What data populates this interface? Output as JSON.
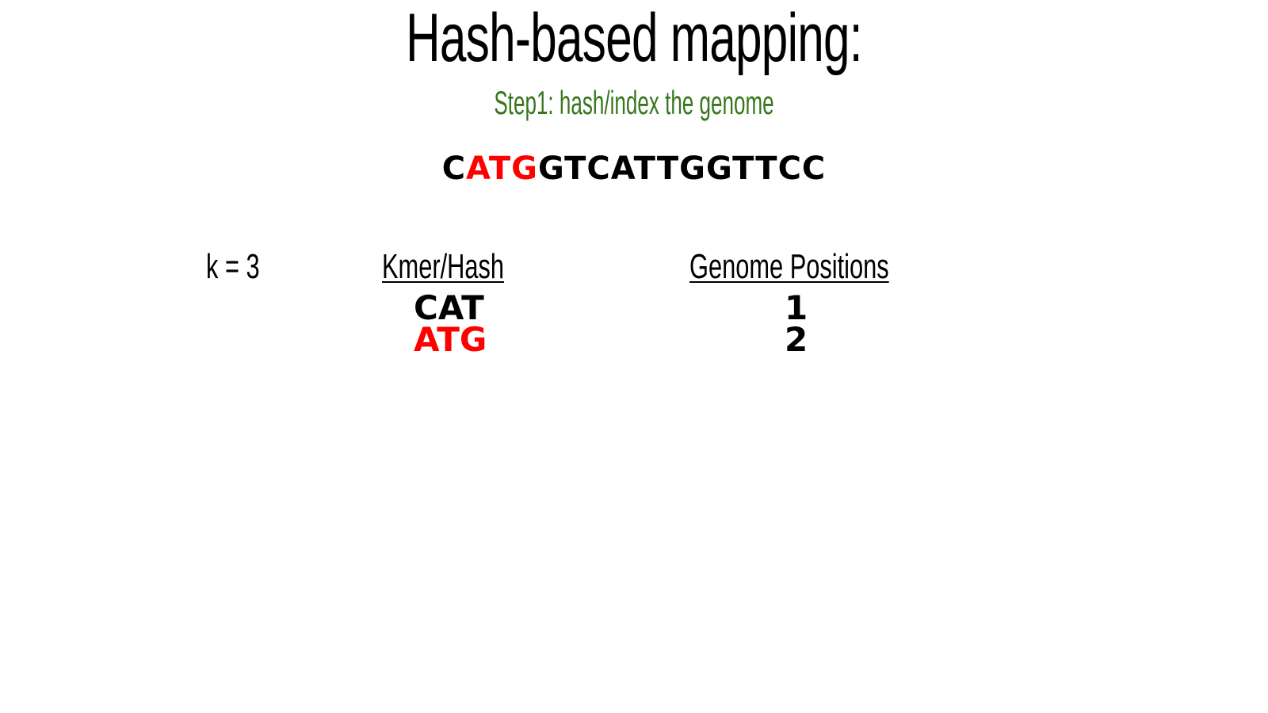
{
  "slide": {
    "title": "Hash-based mapping:",
    "subtitle": "Step1: hash/index the genome",
    "sequence": {
      "prefix": "C",
      "highlight": "ATG",
      "suffix": "GTCATTGGTTCC"
    },
    "k_label": "k = 3",
    "table": {
      "headers": {
        "kmer": "Kmer/Hash",
        "positions": "Genome Positions"
      },
      "rows": [
        {
          "kmer": "CAT",
          "position": "1",
          "color": "#000000"
        },
        {
          "kmer": "ATG",
          "position": "2",
          "color": "#ff0000"
        }
      ]
    }
  },
  "colors": {
    "subtitle": "#38761d",
    "highlight": "#ff0000",
    "text": "#000000"
  }
}
